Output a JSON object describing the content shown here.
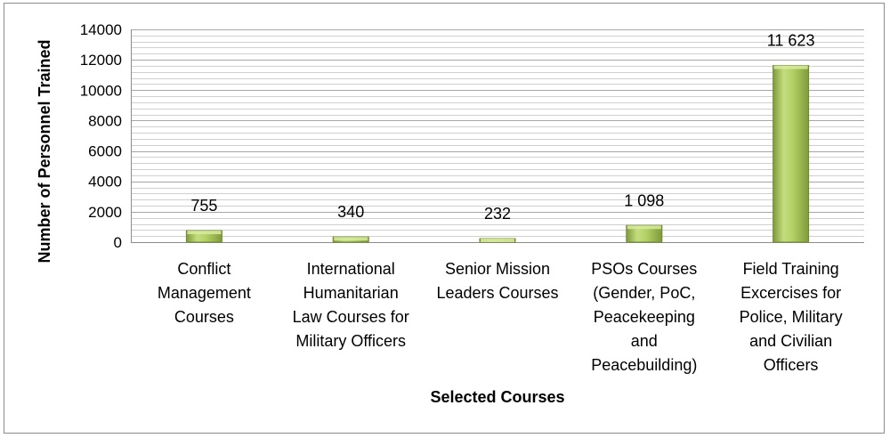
{
  "chart_data": {
    "type": "bar",
    "title": "",
    "xlabel": "Selected Courses",
    "ylabel": "Number of Personnel Trained",
    "ylim": [
      0,
      14000
    ],
    "yticks": [
      0,
      2000,
      4000,
      6000,
      8000,
      10000,
      12000,
      14000
    ],
    "grid": true,
    "categories": [
      [
        "Conflict",
        "Management",
        "Courses"
      ],
      [
        "International",
        "Humanitarian",
        "Law Courses for",
        "Military Officers"
      ],
      [
        "Senior Mission",
        "Leaders Courses"
      ],
      [
        "PSOs Courses",
        "(Gender, PoC,",
        "Peacekeeping",
        "and",
        "Peacebuilding)"
      ],
      [
        "Field Training",
        "Excercises  for",
        "Police, Military",
        "and Civilian",
        "Officers"
      ]
    ],
    "values": [
      755,
      340,
      232,
      1098,
      11623
    ],
    "data_labels": [
      "755",
      "340",
      "232",
      "1 098",
      "11 623"
    ],
    "bar_color": "#9bbb59",
    "bar_edge_color": "#6d8a2f",
    "grid_color": "#b3b3b3"
  }
}
